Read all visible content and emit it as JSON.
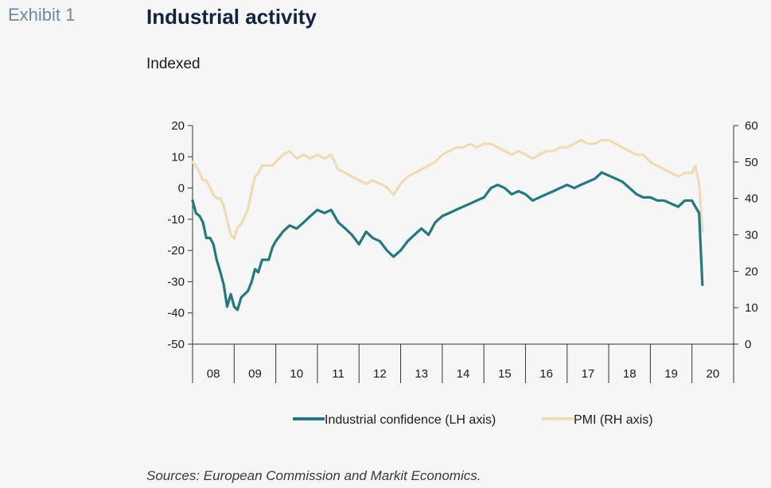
{
  "header": {
    "exhibit": "Exhibit 1",
    "title": "Industrial activity",
    "subtitle": "Indexed"
  },
  "source": "Sources: European Commission and Markit Economics.",
  "colors": {
    "confidence": "#217a80",
    "pmi": "#efdcb5",
    "axis": "#333333"
  },
  "chart_data": {
    "type": "line",
    "x_categories": [
      "08",
      "09",
      "10",
      "11",
      "12",
      "13",
      "14",
      "15",
      "16",
      "17",
      "18",
      "19",
      "20"
    ],
    "y_left": {
      "ylim": [
        -50,
        20
      ],
      "ticks": [
        20,
        10,
        0,
        -10,
        -20,
        -30,
        -40,
        -50
      ]
    },
    "y_right": {
      "ylim": [
        0,
        60
      ],
      "ticks": [
        60,
        50,
        40,
        30,
        20,
        10,
        0
      ]
    },
    "legend_position": "bottom",
    "series": [
      {
        "name": "Industrial confidence (LH axis)",
        "axis": "left",
        "x": [
          2008.0,
          2008.08,
          2008.17,
          2008.25,
          2008.33,
          2008.42,
          2008.5,
          2008.58,
          2008.67,
          2008.75,
          2008.83,
          2008.92,
          2009.0,
          2009.08,
          2009.17,
          2009.25,
          2009.33,
          2009.42,
          2009.5,
          2009.58,
          2009.67,
          2009.75,
          2009.83,
          2009.92,
          2010.0,
          2010.17,
          2010.33,
          2010.5,
          2010.67,
          2010.83,
          2011.0,
          2011.17,
          2011.33,
          2011.5,
          2011.67,
          2011.83,
          2012.0,
          2012.17,
          2012.33,
          2012.5,
          2012.67,
          2012.83,
          2013.0,
          2013.17,
          2013.33,
          2013.5,
          2013.67,
          2013.83,
          2014.0,
          2014.17,
          2014.33,
          2014.5,
          2014.67,
          2014.83,
          2015.0,
          2015.17,
          2015.33,
          2015.5,
          2015.67,
          2015.83,
          2016.0,
          2016.17,
          2016.33,
          2016.5,
          2016.67,
          2016.83,
          2017.0,
          2017.17,
          2017.33,
          2017.5,
          2017.67,
          2017.83,
          2018.0,
          2018.17,
          2018.33,
          2018.5,
          2018.67,
          2018.83,
          2019.0,
          2019.17,
          2019.33,
          2019.5,
          2019.67,
          2019.83,
          2020.0,
          2020.08,
          2020.17,
          2020.25
        ],
        "values": [
          -4,
          -8,
          -9,
          -11,
          -16,
          -16,
          -18,
          -23,
          -27,
          -31,
          -38,
          -34,
          -38,
          -39,
          -35,
          -34,
          -33,
          -30,
          -26,
          -27,
          -23,
          -23,
          -23,
          -19,
          -17,
          -14,
          -12,
          -13,
          -11,
          -9,
          -7,
          -8,
          -7,
          -11,
          -13,
          -15,
          -18,
          -14,
          -16,
          -17,
          -20,
          -22,
          -20,
          -17,
          -15,
          -13,
          -15,
          -11,
          -9,
          -8,
          -7,
          -6,
          -5,
          -4,
          -3,
          0,
          1,
          0,
          -2,
          -1,
          -2,
          -4,
          -3,
          -2,
          -1,
          0,
          1,
          0,
          1,
          2,
          3,
          5,
          4,
          3,
          2,
          0,
          -2,
          -3,
          -3,
          -4,
          -4,
          -5,
          -6,
          -4,
          -4,
          -6,
          -8,
          -31
        ]
      },
      {
        "name": "PMI (RH axis)",
        "axis": "right",
        "x": [
          2008.0,
          2008.08,
          2008.17,
          2008.25,
          2008.33,
          2008.42,
          2008.5,
          2008.58,
          2008.67,
          2008.75,
          2008.83,
          2008.92,
          2009.0,
          2009.08,
          2009.17,
          2009.25,
          2009.33,
          2009.42,
          2009.5,
          2009.58,
          2009.67,
          2009.75,
          2009.83,
          2009.92,
          2010.0,
          2010.17,
          2010.33,
          2010.5,
          2010.67,
          2010.83,
          2011.0,
          2011.17,
          2011.33,
          2011.5,
          2011.67,
          2011.83,
          2012.0,
          2012.17,
          2012.33,
          2012.5,
          2012.67,
          2012.83,
          2013.0,
          2013.17,
          2013.33,
          2013.5,
          2013.67,
          2013.83,
          2014.0,
          2014.17,
          2014.33,
          2014.5,
          2014.67,
          2014.83,
          2015.0,
          2015.17,
          2015.33,
          2015.5,
          2015.67,
          2015.83,
          2016.0,
          2016.17,
          2016.33,
          2016.5,
          2016.67,
          2016.83,
          2017.0,
          2017.17,
          2017.33,
          2017.5,
          2017.67,
          2017.83,
          2018.0,
          2018.17,
          2018.33,
          2018.5,
          2018.67,
          2018.83,
          2019.0,
          2019.17,
          2019.33,
          2019.5,
          2019.67,
          2019.83,
          2020.0,
          2020.08,
          2020.17,
          2020.25
        ],
        "values": [
          50,
          49,
          47,
          45,
          45,
          43,
          41,
          40,
          40,
          38,
          34,
          30,
          29,
          32,
          33,
          35,
          37,
          42,
          46,
          47,
          49,
          49,
          49,
          49,
          50,
          52,
          53,
          51,
          52,
          51,
          52,
          51,
          52,
          48,
          47,
          46,
          45,
          44,
          45,
          44,
          43,
          41,
          44,
          46,
          47,
          48,
          49,
          50,
          52,
          53,
          54,
          54,
          55,
          54,
          55,
          55,
          54,
          53,
          52,
          53,
          52,
          51,
          52,
          53,
          53,
          54,
          54,
          55,
          56,
          55,
          55,
          56,
          56,
          55,
          54,
          53,
          52,
          52,
          50,
          49,
          48,
          47,
          46,
          47,
          47,
          49,
          44,
          31
        ]
      }
    ]
  }
}
